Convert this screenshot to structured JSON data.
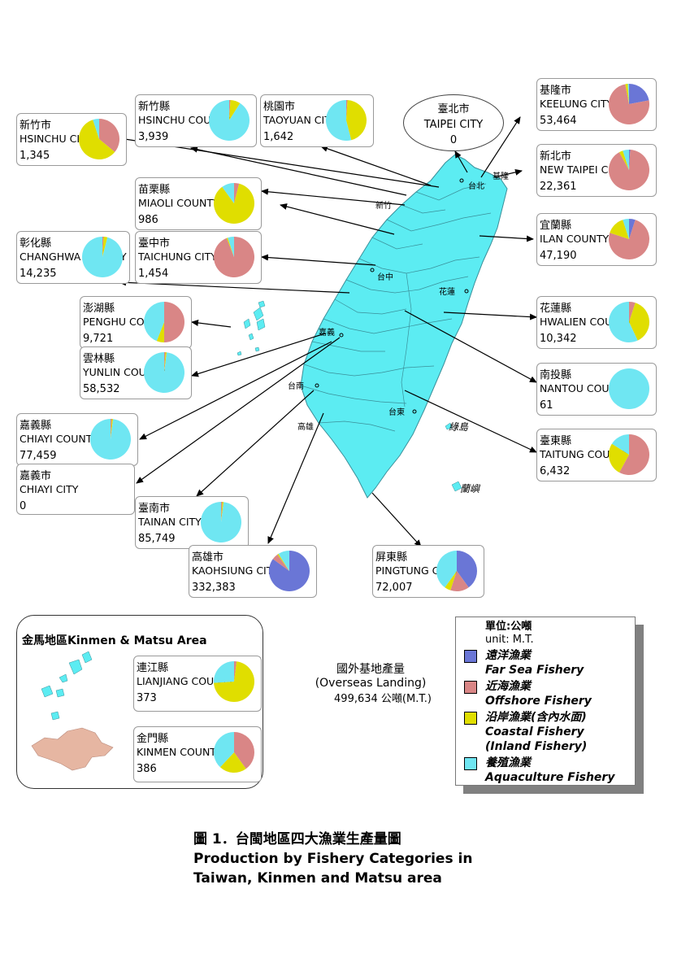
{
  "colors": {
    "far_sea": "#6a76d6",
    "offshore": "#d98686",
    "coastal": "#e0de00",
    "aquaculture": "#6fe6f2",
    "island": "#5cecf2",
    "kinmen_island": "#e6b6a2"
  },
  "regions": [
    {
      "id": "hsinchu-city",
      "zh": "新竹市",
      "en": "HSINCHU CITY",
      "value": "1,345",
      "shares": {
        "far_sea": 0,
        "offshore": 0.36,
        "coastal": 0.59,
        "aquaculture": 0.05
      }
    },
    {
      "id": "hsinchu-county",
      "zh": "新竹縣",
      "en": "HSINCHU COUNTY",
      "value": "3,939",
      "shares": {
        "far_sea": 0,
        "offshore": 0.01,
        "coastal": 0.08,
        "aquaculture": 0.91
      }
    },
    {
      "id": "taoyuan-city",
      "zh": "桃園市",
      "en": "TAOYUAN CITY",
      "value": "1,642",
      "shares": {
        "far_sea": 0,
        "offshore": 0.01,
        "coastal": 0.45,
        "aquaculture": 0.54
      }
    },
    {
      "id": "taipei-city",
      "zh": "臺北市",
      "en": "TAIPEI CITY",
      "value": "0"
    },
    {
      "id": "keelung-city",
      "zh": "基隆市",
      "en": "KEELUNG CITY",
      "value": "53,464",
      "shares": {
        "far_sea": 0.22,
        "offshore": 0.75,
        "coastal": 0.02,
        "aquaculture": 0.01
      }
    },
    {
      "id": "new-taipei-city",
      "zh": "新北市",
      "en": "NEW TAIPEI CITY",
      "value": "22,361",
      "shares": {
        "far_sea": 0.01,
        "offshore": 0.91,
        "coastal": 0.03,
        "aquaculture": 0.05
      }
    },
    {
      "id": "miaoli-county",
      "zh": "苗栗縣",
      "en": "MIAOLI COUNTY",
      "value": "986",
      "shares": {
        "far_sea": 0,
        "offshore": 0.04,
        "coastal": 0.86,
        "aquaculture": 0.1
      }
    },
    {
      "id": "changhwa-county",
      "zh": "彰化縣",
      "en": "CHANGHWA COUNTY",
      "value": "14,235",
      "shares": {
        "far_sea": 0,
        "offshore": 0.01,
        "coastal": 0.03,
        "aquaculture": 0.96
      }
    },
    {
      "id": "taichung-city",
      "zh": "臺中市",
      "en": "TAICHUNG CITY",
      "value": "1,454",
      "shares": {
        "far_sea": 0,
        "offshore": 0.94,
        "coastal": 0.01,
        "aquaculture": 0.05
      }
    },
    {
      "id": "ilan-county",
      "zh": "宜蘭縣",
      "en": "ILAN COUNTY",
      "value": "47,190",
      "shares": {
        "far_sea": 0.05,
        "offshore": 0.75,
        "coastal": 0.15,
        "aquaculture": 0.05
      }
    },
    {
      "id": "penghu-county",
      "zh": "澎湖縣",
      "en": "PENGHU COUNTY",
      "value": "9,721",
      "shares": {
        "far_sea": 0,
        "offshore": 0.5,
        "coastal": 0.06,
        "aquaculture": 0.44
      }
    },
    {
      "id": "hwalien-county",
      "zh": "花蓮縣",
      "en": "HWALIEN COUNTY",
      "value": "10,342",
      "shares": {
        "far_sea": 0,
        "offshore": 0.05,
        "coastal": 0.38,
        "aquaculture": 0.57
      }
    },
    {
      "id": "yunlin-county",
      "zh": "雲林縣",
      "en": "YUNLIN COUNTY",
      "value": "58,532",
      "shares": {
        "far_sea": 0,
        "offshore": 0.01,
        "coastal": 0.01,
        "aquaculture": 0.98
      }
    },
    {
      "id": "nantou-county",
      "zh": "南投縣",
      "en": "NANTOU COUNTY",
      "value": "61",
      "shares": {
        "far_sea": 0,
        "offshore": 0,
        "coastal": 0,
        "aquaculture": 1
      }
    },
    {
      "id": "chiayi-county",
      "zh": "嘉義縣",
      "en": "CHIAYI COUNTY",
      "value": "77,459",
      "shares": {
        "far_sea": 0,
        "offshore": 0.01,
        "coastal": 0.01,
        "aquaculture": 0.98
      }
    },
    {
      "id": "taitung-county",
      "zh": "臺東縣",
      "en": "TAITUNG COUNTY",
      "value": "6,432",
      "shares": {
        "far_sea": 0,
        "offshore": 0.58,
        "coastal": 0.26,
        "aquaculture": 0.16
      }
    },
    {
      "id": "chiayi-city",
      "zh": "嘉義市",
      "en": "CHIAYI CITY",
      "value": "0"
    },
    {
      "id": "tainan-city",
      "zh": "臺南市",
      "en": "TAINAN CITY",
      "value": "85,749",
      "shares": {
        "far_sea": 0,
        "offshore": 0.01,
        "coastal": 0.01,
        "aquaculture": 0.98
      }
    },
    {
      "id": "kaohsiung-city",
      "zh": "高雄市",
      "en": "KAOHSIUNG CITY",
      "value": "332,383",
      "shares": {
        "far_sea": 0.85,
        "offshore": 0.05,
        "coastal": 0.01,
        "aquaculture": 0.09
      }
    },
    {
      "id": "pingtung-county",
      "zh": "屏東縣",
      "en": "PINGTUNG COUNTY",
      "value": "72,007",
      "shares": {
        "far_sea": 0.4,
        "offshore": 0.15,
        "coastal": 0.05,
        "aquaculture": 0.4
      }
    },
    {
      "id": "lianjiang-county",
      "zh": "連江縣",
      "en": "LIANJIANG COUNTY",
      "value": "373",
      "shares": {
        "far_sea": 0,
        "offshore": 0.02,
        "coastal": 0.72,
        "aquaculture": 0.26
      }
    },
    {
      "id": "kinmen-county",
      "zh": "金門縣",
      "en": "KINMEN COUNTY",
      "value": "386",
      "shares": {
        "far_sea": 0,
        "offshore": 0.4,
        "coastal": 0.22,
        "aquaculture": 0.38
      }
    }
  ],
  "map_labels": {
    "keelung": "基隆",
    "taipei": "台北",
    "hsinchu": "新竹",
    "taichung": "台中",
    "hualien": "花蓮",
    "chiayi": "嘉義",
    "tainan": "台南",
    "kaohsiung": "高雄",
    "taitung": "台東",
    "green_island": "綠島",
    "orchid_island": "蘭嶼"
  },
  "kinmen_matsu_title": "金馬地區Kinmen & Matsu Area",
  "overseas": {
    "zh": "國外基地產量",
    "en": "(Overseas Landing)",
    "value": "499,634 公噸(M.T.)"
  },
  "legend": {
    "unit_zh": "單位:公噸",
    "unit_en": "unit: M.T.",
    "items": [
      {
        "key": "far_sea",
        "zh": "遠洋漁業",
        "en": "Far Sea Fishery"
      },
      {
        "key": "offshore",
        "zh": "近海漁業",
        "en": "Offshore Fishery"
      },
      {
        "key": "coastal",
        "zh": "沿岸漁業(含內水面)",
        "en": "Coastal Fishery",
        "en2": "(Inland Fishery)"
      },
      {
        "key": "aquaculture",
        "zh": "養殖漁業",
        "en": "Aquaculture Fishery"
      }
    ]
  },
  "caption": {
    "line1": "圖 1．台閩地區四大漁業生產量圖",
    "line2": "Production by Fishery  Categories in",
    "line3": " Taiwan, Kinmen and Matsu area"
  }
}
